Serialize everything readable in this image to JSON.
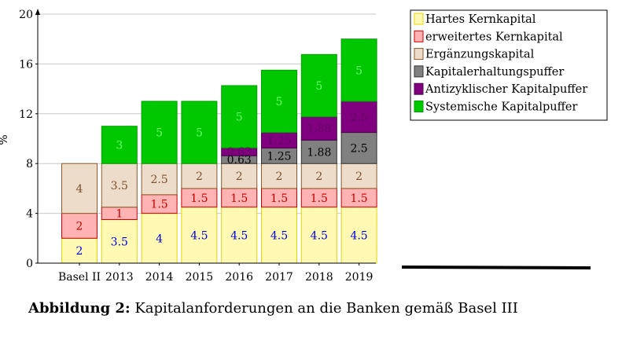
{
  "chart_data": {
    "type": "bar",
    "stacked": true,
    "categories": [
      "Basel II",
      "2013",
      "2014",
      "2015",
      "2016",
      "2017",
      "2018",
      "2019"
    ],
    "ylabel": "%",
    "ylim": [
      0,
      20
    ],
    "yticks": [
      0,
      4,
      8,
      12,
      16,
      20
    ],
    "grid": true,
    "legend_position": "top-right",
    "series": [
      {
        "name": "Hartes Kernkapital",
        "values": [
          2,
          3.5,
          4,
          4.5,
          4.5,
          4.5,
          4.5,
          4.5
        ],
        "labels": [
          "2",
          "3.5",
          "4",
          "4.5",
          "4.5",
          "4.5",
          "4.5",
          "4.5"
        ],
        "fill": "#fff9b3",
        "stroke": "#e6d600",
        "label_color": "#0000dd"
      },
      {
        "name": "erweitertes Kernkapital",
        "values": [
          2,
          1,
          1.5,
          1.5,
          1.5,
          1.5,
          1.5,
          1.5
        ],
        "labels": [
          "2",
          "1",
          "1.5",
          "1.5",
          "1.5",
          "1.5",
          "1.5",
          "1.5"
        ],
        "fill": "#ffb3b3",
        "stroke": "#cc0000",
        "label_color": "#cc0000"
      },
      {
        "name": "Ergänzungskapital",
        "values": [
          4,
          3.5,
          2.5,
          2,
          2,
          2,
          2,
          2
        ],
        "labels": [
          "4",
          "3.5",
          "2.5",
          "2",
          "2",
          "2",
          "2",
          "2"
        ],
        "fill": "#eddcc9",
        "stroke": "#8b5a2b",
        "label_color": "#7a5030"
      },
      {
        "name": "Kapitalerhaltungspuffer",
        "values": [
          0,
          0,
          0,
          0,
          0.63,
          1.25,
          1.88,
          2.5
        ],
        "labels": [
          "",
          "",
          "",
          "",
          "0.63",
          "1.25",
          "1.88",
          "2.5"
        ],
        "fill": "#808080",
        "stroke": "#333333",
        "label_color": "#000000"
      },
      {
        "name": "Antizyklischer Kapitalpuffer",
        "values": [
          0,
          0,
          0,
          0,
          0.63,
          1.25,
          1.88,
          2.5
        ],
        "labels": [
          "",
          "",
          "",
          "",
          "0.63",
          "1.25",
          "1.88",
          "2.5"
        ],
        "fill": "#800080",
        "stroke": "#4a004a",
        "label_color": "#660066"
      },
      {
        "name": "Systemische Kapitalpuffer",
        "values": [
          0,
          3,
          5,
          5,
          5,
          5,
          5,
          5
        ],
        "labels": [
          "",
          "3",
          "5",
          "5",
          "5",
          "5",
          "5",
          "5"
        ],
        "fill": "#00c800",
        "stroke": "#00a000",
        "label_color": "#66ff66"
      }
    ]
  },
  "caption": {
    "label": "Abbildung 2:",
    "text": " Kapitalanforderungen an die Banken gemäß Basel III"
  }
}
